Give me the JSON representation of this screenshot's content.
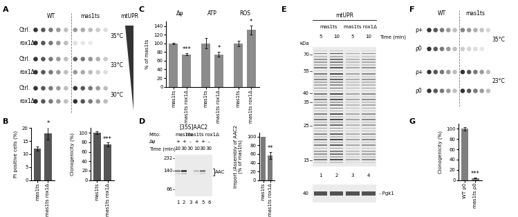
{
  "panel_labels": [
    "A",
    "B",
    "C",
    "D",
    "E",
    "F",
    "G"
  ],
  "spot_assay_A": {
    "strains": [
      "WT",
      "mas1ts"
    ],
    "rows": [
      "Ctrl.",
      "rox1Δ"
    ],
    "temperatures": [
      "35°C",
      "33°C",
      "30°C"
    ],
    "gradient_label": "mtUPR"
  },
  "chart_data": [
    {
      "type": "bar",
      "ylabel": "PI positive cells (%)",
      "categories": [
        "mas1ts",
        "mas1ts rox1Δ"
      ],
      "values": [
        12,
        18
      ],
      "errors": [
        0.8,
        2.5
      ],
      "annotations": [
        {
          "index": 1,
          "text": "*"
        }
      ],
      "ylim": [
        0,
        20
      ],
      "yticks": [
        0,
        5,
        10,
        15,
        20
      ],
      "color": "#555555"
    },
    {
      "type": "bar",
      "ylabel": "Clonogenicity (%)",
      "categories": [
        "mas1ts",
        "mas1ts rox1Δ"
      ],
      "values": [
        100,
        75
      ],
      "errors": [
        3,
        4
      ],
      "annotations": [
        {
          "index": 1,
          "text": "***"
        }
      ],
      "ylim": [
        0,
        110
      ],
      "yticks": [
        0,
        20,
        40,
        60,
        80,
        100
      ],
      "color": "#555555"
    },
    {
      "type": "bar",
      "ylabel": "% of mas1ts",
      "categories": [
        "mas1ts",
        "mas1ts rox1Δ",
        "mas1ts",
        "mas1ts rox1Δ",
        "mas1ts",
        "mas1ts rox1Δ"
      ],
      "groups": [
        "Δψ",
        "ATP",
        "ROS"
      ],
      "values": [
        100,
        75,
        100,
        75,
        100,
        131
      ],
      "errors": [
        2,
        3,
        12,
        5,
        6,
        10
      ],
      "annotations": [
        {
          "index": 1,
          "text": "***"
        },
        {
          "index": 3,
          "text": "*"
        },
        {
          "index": 5,
          "text": "*"
        }
      ],
      "ylim": [
        0,
        150
      ],
      "yticks": [
        0,
        20,
        40,
        60,
        80,
        100,
        120,
        140
      ],
      "color": "#8c8c8c"
    },
    {
      "type": "bar",
      "ylabel": [
        "Import /Assembly of AAC2",
        "(% of mas1ts)"
      ],
      "categories": [
        "mas1ts",
        "mas1ts rox1Δ"
      ],
      "values": [
        100,
        57
      ],
      "errors": [
        null,
        8
      ],
      "annotations": [
        {
          "index": 1,
          "text": "**"
        }
      ],
      "ylim": [
        0,
        110
      ],
      "yticks": [
        0,
        20,
        40,
        60,
        80,
        100
      ],
      "color": "#7a7a7a"
    },
    {
      "type": "bar",
      "ylabel": "Clonogenicity (%)",
      "categories": [
        "WT ρ0",
        "mas1ts ρ0"
      ],
      "values": [
        100,
        4
      ],
      "errors": [
        3,
        1
      ],
      "annotations": [
        {
          "index": 1,
          "text": "***"
        }
      ],
      "ylim": [
        0,
        110
      ],
      "yticks": [
        0,
        20,
        40,
        60,
        80,
        100
      ],
      "color": "#7f7f7f"
    }
  ],
  "gel_D": {
    "title": "[35S]AAC2",
    "row_label": "Mito.",
    "strains": [
      "mas1ts",
      "mas1ts rox1Δ"
    ],
    "conditions": [
      {
        "label": "Δψ",
        "values": [
          "+",
          "+",
          "-",
          "+",
          "+",
          "-"
        ]
      },
      {
        "label": "Time (min)",
        "values": [
          10,
          30,
          30,
          10,
          30,
          30
        ]
      }
    ],
    "lanes": [
      1,
      2,
      3,
      4,
      5,
      6
    ],
    "markers": [
      232,
      140,
      66
    ],
    "band_label": "AAC"
  },
  "gel_E": {
    "header": "mtUPR",
    "strains": [
      "mas1ts",
      "mas1ts rox1Δ"
    ],
    "time_label": "Time (min)",
    "times": [
      5,
      10,
      5,
      10
    ],
    "marker_unit": "kDa",
    "markers": [
      70,
      55,
      40,
      35,
      25,
      15
    ],
    "lanes": [
      1,
      2,
      3,
      4
    ],
    "loading_control": {
      "marker": 40,
      "label": "Pgk1"
    }
  },
  "spot_assay_F": {
    "strains": [
      "WT",
      "mas1ts"
    ],
    "rows": [
      "ρ+",
      "ρ0"
    ],
    "temperatures": [
      "35°C",
      "23°C"
    ]
  }
}
